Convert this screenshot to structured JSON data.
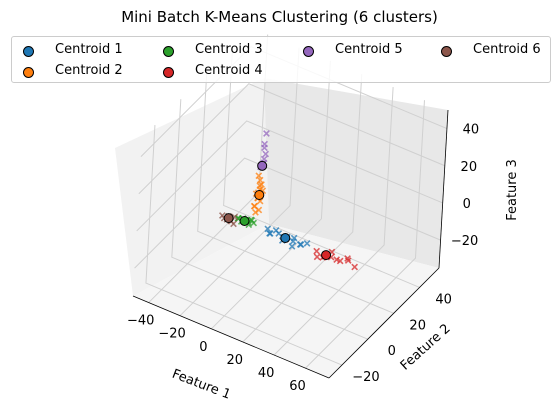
{
  "chart_data": {
    "type": "scatter",
    "projection": "3d",
    "title": "Mini Batch K-Means Clustering (6 clusters)",
    "xlabel": "Feature 1",
    "ylabel": "Feature 2",
    "zlabel": "Feature 3",
    "xlim": [
      -50,
      75
    ],
    "ylim": [
      -30,
      55
    ],
    "zlim": [
      -35,
      50
    ],
    "xticks": [
      "−40",
      "−20",
      "0",
      "20",
      "40",
      "60"
    ],
    "yticks": [
      "−20",
      "0",
      "20",
      "40"
    ],
    "zticks": [
      "−20",
      "0",
      "20",
      "40"
    ],
    "grid": true,
    "legend_position": "top",
    "legend_columns": 4,
    "series": [
      {
        "name": "Centroid 1",
        "color": "#1f77b4",
        "points": [
          [
            10,
            0,
            -1
          ],
          [
            15,
            1,
            0
          ],
          [
            20,
            -1,
            1
          ],
          [
            25,
            0,
            0
          ],
          [
            28,
            2,
            -2
          ],
          [
            12,
            -2,
            1
          ],
          [
            18,
            1,
            -1
          ],
          [
            22,
            -1,
            2
          ],
          [
            30,
            0,
            0
          ],
          [
            8,
            1,
            0
          ],
          [
            26,
            -2,
            -1
          ],
          [
            33,
            1,
            1
          ],
          [
            14,
            0,
            2
          ],
          [
            24,
            2,
            0
          ],
          [
            19,
            -1,
            -1
          ]
        ],
        "centroid": [
          20,
          0,
          0
        ]
      },
      {
        "name": "Centroid 2",
        "color": "#ff7f0e",
        "points": [
          [
            -2,
            2,
            8
          ],
          [
            -1,
            3,
            12
          ],
          [
            0,
            2,
            16
          ],
          [
            1,
            3,
            20
          ],
          [
            -1,
            2,
            5
          ],
          [
            0,
            4,
            10
          ],
          [
            1,
            2,
            18
          ],
          [
            -2,
            3,
            14
          ],
          [
            0,
            3,
            22
          ],
          [
            1,
            2,
            7
          ],
          [
            -1,
            3,
            24
          ],
          [
            0,
            2,
            13
          ],
          [
            2,
            3,
            17
          ],
          [
            -1,
            1,
            9
          ],
          [
            0,
            3,
            19
          ]
        ],
        "centroid": [
          0,
          3,
          14
        ]
      },
      {
        "name": "Centroid 3",
        "color": "#2ca02c",
        "points": [
          [
            -8,
            0,
            -1
          ],
          [
            -5,
            1,
            0
          ],
          [
            -3,
            -1,
            1
          ],
          [
            -10,
            0,
            0
          ],
          [
            -6,
            2,
            -1
          ],
          [
            -2,
            0,
            2
          ],
          [
            -9,
            -1,
            1
          ],
          [
            -4,
            1,
            -2
          ],
          [
            -7,
            0,
            1
          ],
          [
            -1,
            1,
            0
          ],
          [
            -11,
            1,
            -1
          ],
          [
            -3,
            2,
            0
          ]
        ],
        "centroid": [
          -6,
          0,
          0
        ]
      },
      {
        "name": "Centroid 4",
        "color": "#d62728",
        "points": [
          [
            40,
            0,
            0
          ],
          [
            45,
            1,
            -1
          ],
          [
            50,
            -1,
            1
          ],
          [
            55,
            0,
            0
          ],
          [
            48,
            2,
            1
          ],
          [
            42,
            -2,
            -1
          ],
          [
            60,
            0,
            2
          ],
          [
            52,
            1,
            -1
          ],
          [
            46,
            -1,
            0
          ],
          [
            58,
            2,
            1
          ],
          [
            44,
            0,
            -2
          ],
          [
            65,
            -1,
            1
          ]
        ],
        "centroid": [
          46,
          0,
          0
        ]
      },
      {
        "name": "Centroid 5",
        "color": "#9467bd",
        "points": [
          [
            0,
            4,
            30
          ],
          [
            1,
            5,
            35
          ],
          [
            0,
            5,
            40
          ],
          [
            -1,
            4,
            28
          ],
          [
            1,
            4,
            33
          ],
          [
            0,
            6,
            45
          ],
          [
            0,
            5,
            38
          ],
          [
            1,
            4,
            31
          ]
        ],
        "centroid": [
          0,
          4,
          29
        ]
      },
      {
        "name": "Centroid 6",
        "color": "#8c564b",
        "points": [
          [
            -14,
            -1,
            -2
          ],
          [
            -17,
            0,
            -3
          ],
          [
            -13,
            1,
            -1
          ],
          [
            -18,
            -1,
            -2
          ],
          [
            -15,
            1,
            -4
          ],
          [
            -20,
            0,
            -2
          ],
          [
            -12,
            -1,
            -3
          ],
          [
            -16,
            0,
            -1
          ]
        ],
        "centroid": [
          -16,
          0,
          -2
        ]
      }
    ]
  }
}
